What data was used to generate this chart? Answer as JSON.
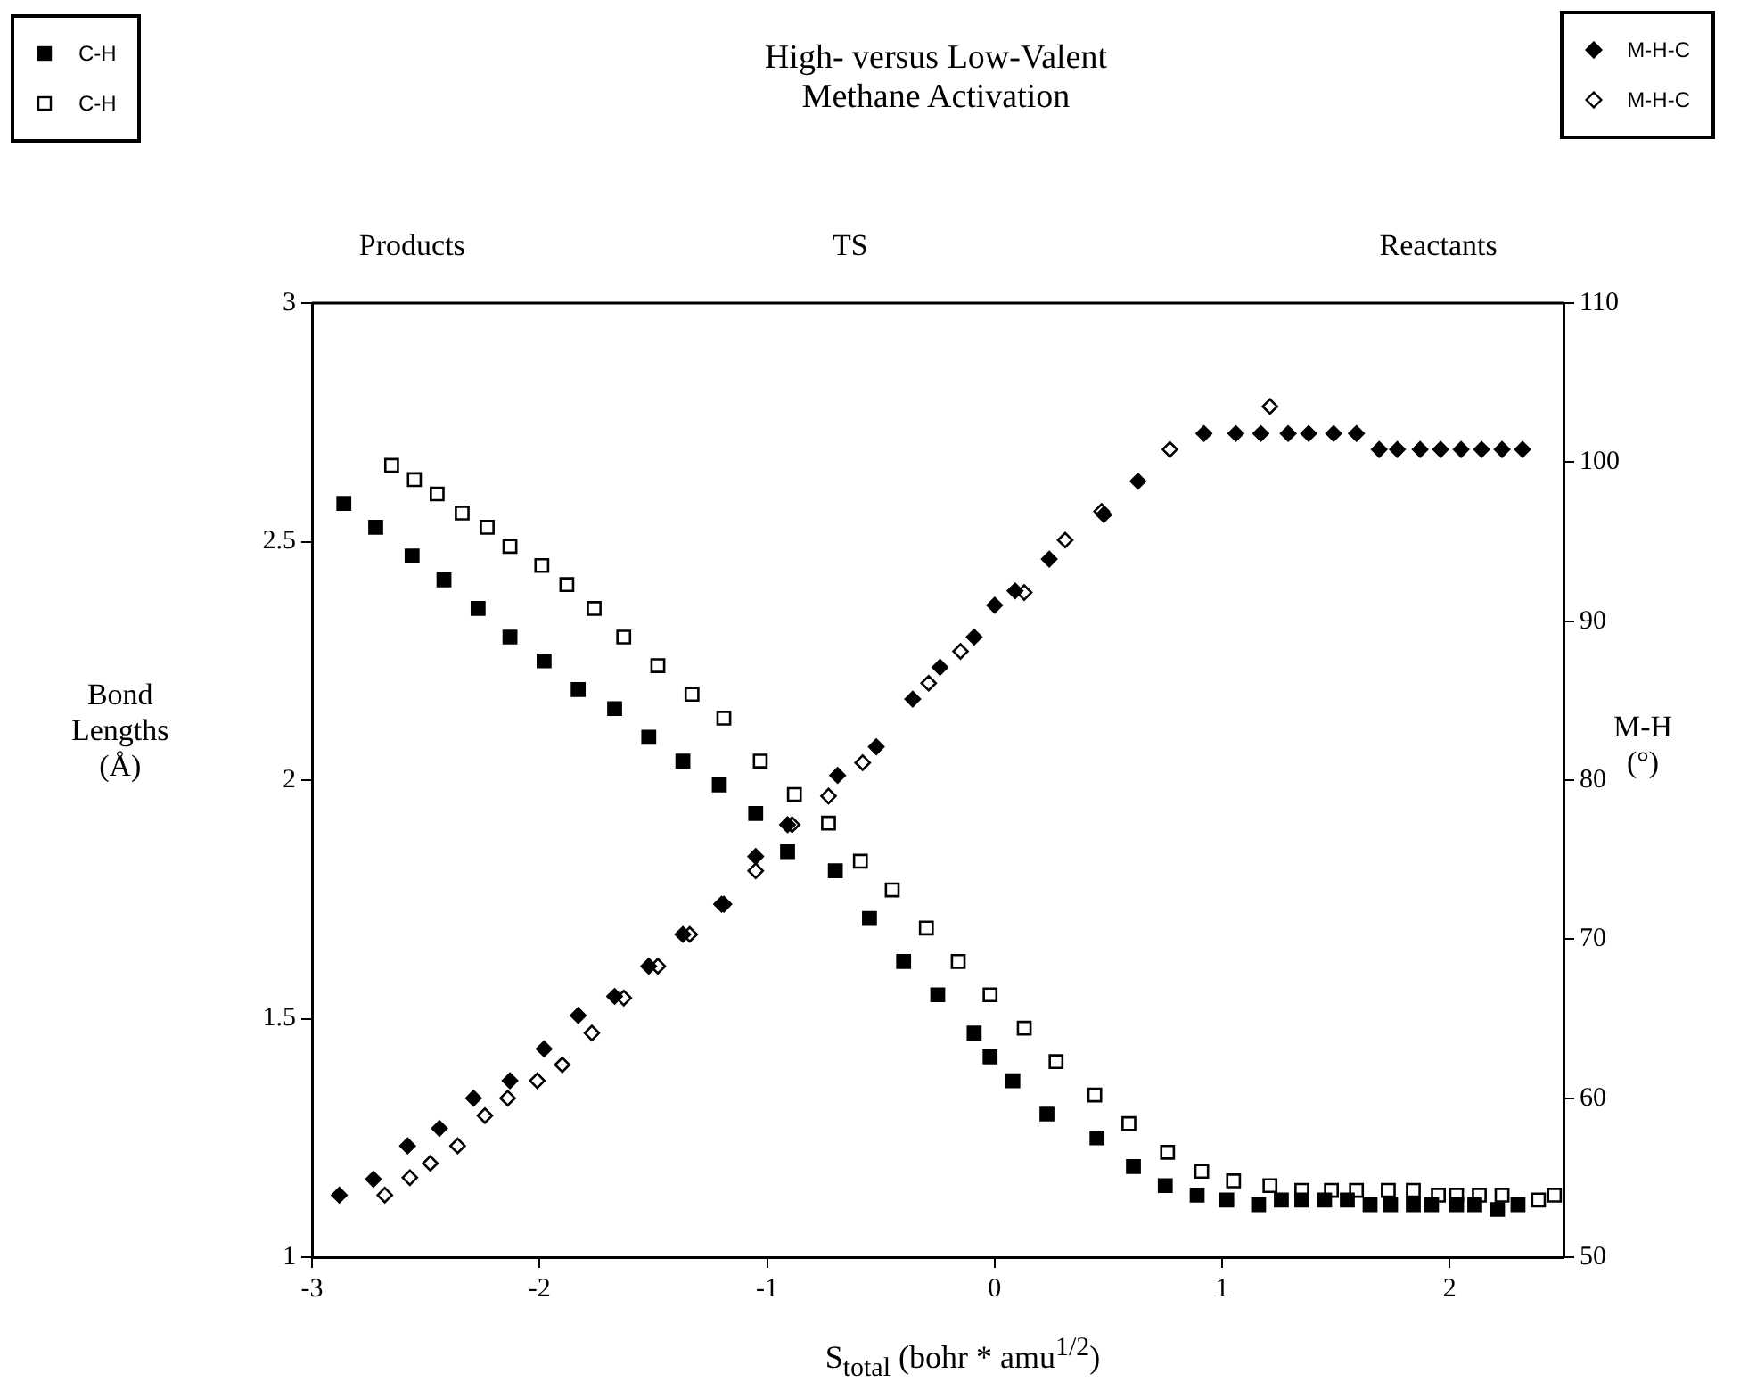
{
  "chart_data": {
    "type": "scatter",
    "title": "High- versus Low-Valent\nMethane Activation",
    "xlabel": "S$_{total}$ (bohr * amu$^{1/2}$)",
    "ylabel": "Bond\nLengths\n(Å)",
    "y2label": "M-H\n(°)",
    "annotations": [
      "Products",
      "TS",
      "Reactants"
    ],
    "xlim": [
      -3,
      2.5
    ],
    "xticks": [
      -3,
      -2,
      -1,
      0,
      1,
      2
    ],
    "ylim": [
      1,
      3
    ],
    "yticks": [
      1,
      1.5,
      2,
      2.5,
      3
    ],
    "y2lim": [
      50,
      110
    ],
    "y2ticks": [
      50,
      60,
      70,
      80,
      90,
      100,
      110
    ],
    "grid": false,
    "legend": "top",
    "series": [
      {
        "name": "C-H",
        "color": "#000000",
        "marker": "square",
        "x": [
          -2.86,
          -2.72,
          -2.56,
          -2.42,
          -2.27,
          -2.13,
          -1.98,
          -1.83,
          -1.67,
          -1.52,
          -1.37,
          -1.21,
          -1.05,
          -0.91,
          -0.7,
          -0.55,
          -0.4,
          -0.25,
          -0.09,
          -0.02,
          0.08,
          0.23,
          0.45,
          0.61,
          0.75,
          0.89,
          1.02,
          1.16,
          1.26,
          1.35,
          1.45,
          1.55,
          1.65,
          1.74,
          1.84,
          1.92,
          2.03,
          2.11,
          2.21,
          2.3
        ],
        "values": [
          2.58,
          2.53,
          2.47,
          2.42,
          2.36,
          2.3,
          2.25,
          2.19,
          2.15,
          2.09,
          2.04,
          1.99,
          1.93,
          1.85,
          1.81,
          1.71,
          1.62,
          1.55,
          1.47,
          1.42,
          1.37,
          1.3,
          1.25,
          1.19,
          1.15,
          1.13,
          1.12,
          1.11,
          1.12,
          1.12,
          1.12,
          1.12,
          1.11,
          1.11,
          1.11,
          1.11,
          1.11,
          1.11,
          1.1,
          1.11
        ]
      },
      {
        "name": "C-H",
        "color": "#ffffff",
        "marker": "square",
        "x": [
          -2.65,
          -2.55,
          -2.45,
          -2.34,
          -2.23,
          -2.13,
          -1.99,
          -1.88,
          -1.76,
          -1.63,
          -1.48,
          -1.33,
          -1.19,
          -1.03,
          -0.88,
          -0.73,
          -0.59,
          -0.45,
          -0.3,
          -0.16,
          -0.02,
          0.13,
          0.27,
          0.44,
          0.59,
          0.76,
          0.91,
          1.05,
          1.21,
          1.35,
          1.48,
          1.59,
          1.73,
          1.84,
          1.95,
          2.03,
          2.13,
          2.23,
          2.39,
          2.46
        ],
        "values": [
          2.66,
          2.63,
          2.6,
          2.56,
          2.53,
          2.49,
          2.45,
          2.41,
          2.36,
          2.3,
          2.24,
          2.18,
          2.13,
          2.04,
          1.97,
          1.91,
          1.83,
          1.77,
          1.69,
          1.62,
          1.55,
          1.48,
          1.41,
          1.34,
          1.28,
          1.22,
          1.18,
          1.16,
          1.15,
          1.14,
          1.14,
          1.14,
          1.14,
          1.14,
          1.13,
          1.13,
          1.13,
          1.13,
          1.12,
          1.13
        ]
      },
      {
        "name": "M-H-C",
        "color": "#000000",
        "marker": "diamond",
        "axis": "y2",
        "x": [
          -2.88,
          -2.73,
          -2.58,
          -2.44,
          -2.29,
          -2.13,
          -1.98,
          -1.83,
          -1.67,
          -1.52,
          -1.37,
          -1.2,
          -1.05,
          -0.91,
          -0.69,
          -0.52,
          -0.36,
          -0.24,
          -0.09,
          0.0,
          0.09,
          0.24,
          0.48,
          0.63,
          0.92,
          1.06,
          1.17,
          1.29,
          1.38,
          1.49,
          1.59,
          1.69,
          1.77,
          1.87,
          1.96,
          2.05,
          2.14,
          2.23,
          2.32
        ],
        "values": [
          53.9,
          54.9,
          57,
          58.1,
          60,
          61.1,
          63.1,
          65.2,
          66.4,
          68.3,
          70.3,
          72.2,
          75.2,
          77.2,
          80.3,
          82.1,
          85.1,
          87.1,
          89,
          91,
          91.9,
          93.9,
          96.7,
          98.8,
          101.8,
          101.8,
          101.8,
          101.8,
          101.8,
          101.8,
          101.8,
          100.8,
          100.8,
          100.8,
          100.8,
          100.8,
          100.8,
          100.8,
          100.8
        ]
      },
      {
        "name": "M-H-C",
        "color": "#ffffff",
        "marker": "diamond",
        "axis": "y2",
        "x": [
          -2.68,
          -2.57,
          -2.48,
          -2.36,
          -2.24,
          -2.14,
          -2.01,
          -1.9,
          -1.77,
          -1.63,
          -1.48,
          -1.34,
          -1.19,
          -1.05,
          -0.89,
          -0.73,
          -0.58,
          -0.29,
          -0.15,
          0.13,
          0.31,
          0.47,
          0.63,
          0.77,
          1.21
        ],
        "values": [
          53.9,
          55,
          55.9,
          57,
          58.9,
          60,
          61.1,
          62.1,
          64.1,
          66.3,
          68.3,
          70.3,
          72.2,
          74.3,
          77.2,
          79,
          81.1,
          86.1,
          88.1,
          91.8,
          95.1,
          96.9,
          null,
          100.8,
          103.5
        ]
      }
    ]
  }
}
